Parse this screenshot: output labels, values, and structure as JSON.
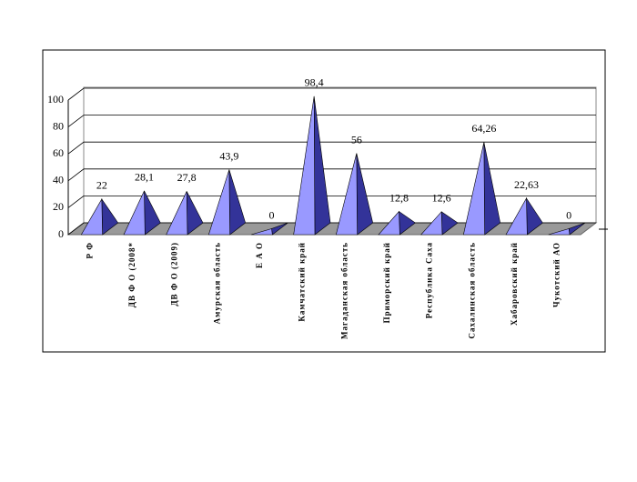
{
  "chart_data": {
    "type": "pyramid",
    "categories": [
      "Р Ф",
      "ДВ Ф О (2008*",
      "ДВ Ф О (2009)",
      "Амурская область",
      "Е А О",
      "Камчатский край",
      "Магаданская область",
      "Приморский край",
      "Республика Саха",
      "Сахалинская область",
      "Хабаровский край",
      "Чукотский АО"
    ],
    "values": [
      22,
      28.1,
      27.8,
      43.9,
      0,
      98.4,
      56,
      12.8,
      12.6,
      64.26,
      22.63,
      0
    ],
    "value_labels": [
      "22",
      "28,1",
      "27,8",
      "43,9",
      "0",
      "98,4",
      "56",
      "12,8",
      "12,6",
      "64,26",
      "22,63",
      "0"
    ],
    "color": "#9999ff",
    "ylim": [
      0,
      100
    ],
    "yticks": [
      0,
      20,
      40,
      60,
      80,
      100
    ],
    "grid": true
  }
}
